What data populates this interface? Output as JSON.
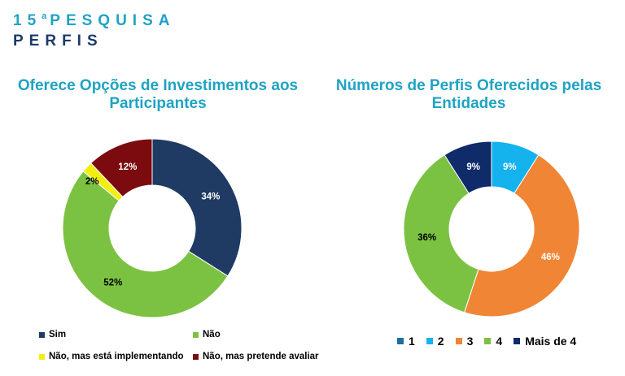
{
  "header": {
    "number": "15",
    "ordinal": "a",
    "word": "PESQUISA",
    "subtitle": "PERFIS"
  },
  "chart_data": [
    {
      "type": "pie",
      "title": "Oferece Opções de Investimentos aos Participantes",
      "donut": true,
      "legend_position": "bottom",
      "slices": [
        {
          "label": "Sim",
          "value": 34,
          "value_label": "34%",
          "color": "#1f3b63"
        },
        {
          "label": "Não",
          "value": 52,
          "value_label": "52%",
          "color": "#7cc242"
        },
        {
          "label": "Não, mas está implementando",
          "value": 2,
          "value_label": "2%",
          "color": "#f2ee11"
        },
        {
          "label": "Não, mas pretende avaliar",
          "value": 12,
          "value_label": "12%",
          "color": "#7b0b0f"
        }
      ]
    },
    {
      "type": "pie",
      "title": "Números de Perfis Oferecidos pelas Entidades",
      "donut": true,
      "legend_position": "bottom",
      "slices": [
        {
          "label": "1",
          "value": 0,
          "value_label": "",
          "color": "#1c6fa0"
        },
        {
          "label": "2",
          "value": 9,
          "value_label": "9%",
          "color": "#14b3ee"
        },
        {
          "label": "3",
          "value": 46,
          "value_label": "46%",
          "color": "#f08536"
        },
        {
          "label": "4",
          "value": 36,
          "value_label": "36%",
          "color": "#7cc242"
        },
        {
          "label": "Mais de 4",
          "value": 9,
          "value_label": "9%",
          "color": "#0f2b6a"
        }
      ]
    }
  ]
}
